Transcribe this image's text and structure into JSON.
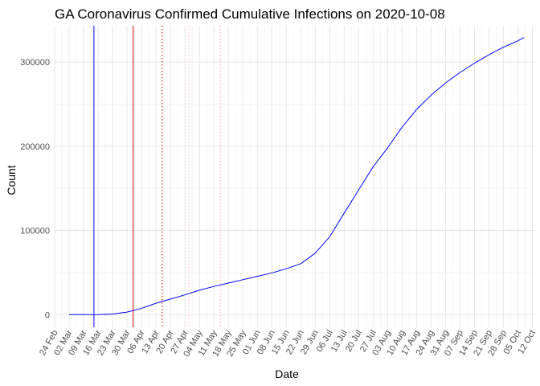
{
  "chart_data": {
    "type": "line",
    "title": "GA Coronavirus Confirmed Cumulative Infections on 2020-10-08",
    "xlabel": "Date",
    "ylabel": "Count",
    "xlim": [
      "2020-02-24",
      "2020-10-13"
    ],
    "ylim": [
      -15000,
      343000
    ],
    "y_ticks": [
      0,
      100000,
      200000,
      300000
    ],
    "y_tick_labels": [
      "0",
      "100000",
      "200000",
      "300000"
    ],
    "x_ticks": [
      "2020-02-24",
      "2020-03-02",
      "2020-03-09",
      "2020-03-16",
      "2020-03-23",
      "2020-03-30",
      "2020-04-06",
      "2020-04-13",
      "2020-04-20",
      "2020-04-27",
      "2020-05-04",
      "2020-05-11",
      "2020-05-18",
      "2020-05-25",
      "2020-06-01",
      "2020-06-08",
      "2020-06-15",
      "2020-06-22",
      "2020-06-29",
      "2020-07-06",
      "2020-07-13",
      "2020-07-20",
      "2020-07-27",
      "2020-08-03",
      "2020-08-10",
      "2020-08-17",
      "2020-08-24",
      "2020-08-31",
      "2020-09-07",
      "2020-09-14",
      "2020-09-21",
      "2020-09-28",
      "2020-10-05",
      "2020-10-12"
    ],
    "x_tick_labels": [
      "24 Feb",
      "02 Mar",
      "09 Mar",
      "16 Mar",
      "23 Mar",
      "30 Mar",
      "06 Apr",
      "13 Apr",
      "20 Apr",
      "27 Apr",
      "04 May",
      "11 May",
      "18 May",
      "25 May",
      "01 Jun",
      "08 Jun",
      "15 Jun",
      "22 Jun",
      "29 Jun",
      "06 Jul",
      "13 Jul",
      "20 Jul",
      "27 Jul",
      "03 Aug",
      "10 Aug",
      "17 Aug",
      "24 Aug",
      "31 Aug",
      "07 Sep",
      "14 Sep",
      "21 Sep",
      "28 Sep",
      "05 Oct",
      "12 Oct"
    ],
    "grid": true,
    "reference_lines": [
      {
        "x": "2020-03-14",
        "color": "#0000ff",
        "style": "solid"
      },
      {
        "x": "2020-04-02",
        "color": "#cc0000",
        "style": "solid"
      },
      {
        "x": "2020-04-16",
        "color": "#cc0000",
        "style": "dotted"
      },
      {
        "x": "2020-04-29",
        "color": "#f4b6b6",
        "style": "dotted"
      },
      {
        "x": "2020-05-14",
        "color": "#f4b6b6",
        "style": "dotted"
      }
    ],
    "series": [
      {
        "color": "#0000ff",
        "points": [
          [
            "2020-03-02",
            2
          ],
          [
            "2020-03-09",
            17
          ],
          [
            "2020-03-16",
            121
          ],
          [
            "2020-03-23",
            800
          ],
          [
            "2020-03-30",
            3000
          ],
          [
            "2020-04-06",
            7500
          ],
          [
            "2020-04-13",
            13500
          ],
          [
            "2020-04-20",
            18500
          ],
          [
            "2020-04-27",
            23500
          ],
          [
            "2020-05-04",
            29000
          ],
          [
            "2020-05-11",
            33500
          ],
          [
            "2020-05-18",
            37500
          ],
          [
            "2020-05-25",
            41500
          ],
          [
            "2020-06-01",
            45500
          ],
          [
            "2020-06-08",
            49500
          ],
          [
            "2020-06-15",
            54500
          ],
          [
            "2020-06-22",
            60500
          ],
          [
            "2020-06-29",
            73000
          ],
          [
            "2020-07-06",
            92500
          ],
          [
            "2020-07-13",
            120500
          ],
          [
            "2020-07-20",
            148000
          ],
          [
            "2020-07-27",
            175500
          ],
          [
            "2020-08-03",
            198000
          ],
          [
            "2020-08-10",
            222500
          ],
          [
            "2020-08-17",
            243500
          ],
          [
            "2020-08-24",
            260500
          ],
          [
            "2020-08-31",
            275000
          ],
          [
            "2020-09-07",
            287500
          ],
          [
            "2020-09-14",
            298500
          ],
          [
            "2020-09-21",
            308500
          ],
          [
            "2020-09-28",
            317500
          ],
          [
            "2020-10-05",
            325000
          ],
          [
            "2020-10-08",
            329000
          ]
        ]
      }
    ]
  }
}
